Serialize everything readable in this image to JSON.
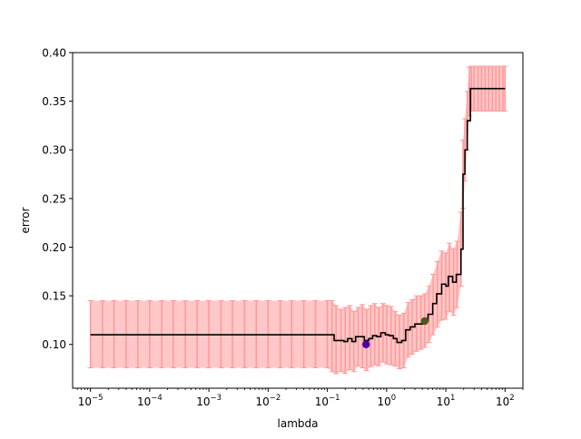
{
  "chart_data": {
    "type": "line",
    "title": "",
    "xlabel": "lambda",
    "ylabel": "error",
    "xscale": "log",
    "xlim": [
      5e-06,
      200
    ],
    "ylim": [
      0.055,
      0.4
    ],
    "grid": false,
    "x_ticks": [
      {
        "value": 1e-05,
        "label": "10−5",
        "base": "10",
        "exp": "−5"
      },
      {
        "value": 0.0001,
        "label": "10−4",
        "base": "10",
        "exp": "−4"
      },
      {
        "value": 0.001,
        "label": "10−3",
        "base": "10",
        "exp": "−3"
      },
      {
        "value": 0.01,
        "label": "10−2",
        "base": "10",
        "exp": "−2"
      },
      {
        "value": 0.1,
        "label": "10−1",
        "base": "10",
        "exp": "−1"
      },
      {
        "value": 1,
        "label": "100",
        "base": "10",
        "exp": "0"
      },
      {
        "value": 10,
        "label": "101",
        "base": "10",
        "exp": "1"
      },
      {
        "value": 100,
        "label": "102",
        "base": "10",
        "exp": "2"
      }
    ],
    "y_ticks": [
      {
        "value": 0.1,
        "label": "0.10"
      },
      {
        "value": 0.15,
        "label": "0.15"
      },
      {
        "value": 0.2,
        "label": "0.20"
      },
      {
        "value": 0.25,
        "label": "0.25"
      },
      {
        "value": 0.3,
        "label": "0.30"
      },
      {
        "value": 0.35,
        "label": "0.35"
      },
      {
        "value": 0.4,
        "label": "0.40"
      }
    ],
    "series": [
      {
        "kind": "line_with_errorbars",
        "line_color": "#000000",
        "errorbar_color": "#ff9999",
        "points": [
          [
            1e-05,
            0.11
          ],
          [
            0.12,
            0.11
          ],
          [
            0.13,
            0.104
          ],
          [
            0.16,
            0.104
          ],
          [
            0.19,
            0.103
          ],
          [
            0.22,
            0.106
          ],
          [
            0.26,
            0.103
          ],
          [
            0.3,
            0.108
          ],
          [
            0.36,
            0.108
          ],
          [
            0.42,
            0.104
          ],
          [
            0.5,
            0.106
          ],
          [
            0.58,
            0.109
          ],
          [
            0.68,
            0.108
          ],
          [
            0.8,
            0.112
          ],
          [
            0.95,
            0.11
          ],
          [
            1.1,
            0.109
          ],
          [
            1.3,
            0.106
          ],
          [
            1.5,
            0.102
          ],
          [
            1.8,
            0.104
          ],
          [
            2.1,
            0.115
          ],
          [
            2.5,
            0.118
          ],
          [
            3.0,
            0.121
          ],
          [
            3.5,
            0.121
          ],
          [
            4.2,
            0.124
          ],
          [
            5.0,
            0.131
          ],
          [
            6.0,
            0.142
          ],
          [
            7.0,
            0.152
          ],
          [
            8.5,
            0.162
          ],
          [
            10.0,
            0.16
          ],
          [
            11.0,
            0.17
          ],
          [
            13.0,
            0.164
          ],
          [
            15.0,
            0.172
          ],
          [
            18.0,
            0.198
          ],
          [
            19.5,
            0.275
          ],
          [
            21.0,
            0.3
          ],
          [
            23.0,
            0.33
          ],
          [
            26.0,
            0.363
          ],
          [
            100.0,
            0.363
          ]
        ],
        "errors": [
          [
            1e-05,
            0.076,
            0.145
          ],
          [
            1.6e-05,
            0.076,
            0.145
          ],
          [
            2.5e-05,
            0.076,
            0.145
          ],
          [
            4e-05,
            0.076,
            0.145
          ],
          [
            6.3e-05,
            0.076,
            0.145
          ],
          [
            0.0001,
            0.076,
            0.145
          ],
          [
            0.00016,
            0.076,
            0.145
          ],
          [
            0.00025,
            0.076,
            0.145
          ],
          [
            0.0004,
            0.076,
            0.145
          ],
          [
            0.00063,
            0.076,
            0.145
          ],
          [
            0.001,
            0.076,
            0.145
          ],
          [
            0.0016,
            0.076,
            0.145
          ],
          [
            0.0025,
            0.076,
            0.145
          ],
          [
            0.004,
            0.076,
            0.145
          ],
          [
            0.0063,
            0.076,
            0.145
          ],
          [
            0.01,
            0.076,
            0.145
          ],
          [
            0.016,
            0.076,
            0.145
          ],
          [
            0.025,
            0.076,
            0.145
          ],
          [
            0.04,
            0.076,
            0.145
          ],
          [
            0.063,
            0.076,
            0.145
          ],
          [
            0.1,
            0.076,
            0.145
          ],
          [
            0.12,
            0.072,
            0.145
          ],
          [
            0.14,
            0.07,
            0.14
          ],
          [
            0.17,
            0.072,
            0.136
          ],
          [
            0.2,
            0.07,
            0.138
          ],
          [
            0.24,
            0.074,
            0.14
          ],
          [
            0.28,
            0.072,
            0.134
          ],
          [
            0.33,
            0.078,
            0.138
          ],
          [
            0.39,
            0.076,
            0.141
          ],
          [
            0.46,
            0.073,
            0.136
          ],
          [
            0.54,
            0.077,
            0.14
          ],
          [
            0.63,
            0.079,
            0.142
          ],
          [
            0.74,
            0.078,
            0.138
          ],
          [
            0.87,
            0.082,
            0.142
          ],
          [
            1.0,
            0.08,
            0.14
          ],
          [
            1.2,
            0.079,
            0.139
          ],
          [
            1.4,
            0.078,
            0.134
          ],
          [
            1.65,
            0.075,
            0.13
          ],
          [
            1.95,
            0.076,
            0.132
          ],
          [
            2.3,
            0.087,
            0.143
          ],
          [
            2.7,
            0.09,
            0.146
          ],
          [
            3.2,
            0.093,
            0.15
          ],
          [
            3.8,
            0.095,
            0.15
          ],
          [
            4.4,
            0.097,
            0.152
          ],
          [
            5.2,
            0.102,
            0.16
          ],
          [
            6.1,
            0.11,
            0.172
          ],
          [
            7.2,
            0.118,
            0.185
          ],
          [
            8.5,
            0.125,
            0.196
          ],
          [
            10.0,
            0.126,
            0.194
          ],
          [
            11.5,
            0.134,
            0.204
          ],
          [
            13.5,
            0.13,
            0.198
          ],
          [
            15.5,
            0.138,
            0.206
          ],
          [
            18.0,
            0.16,
            0.236
          ],
          [
            19.5,
            0.24,
            0.31
          ],
          [
            21.0,
            0.268,
            0.332
          ],
          [
            23.0,
            0.3,
            0.36
          ],
          [
            25.0,
            0.335,
            0.385
          ],
          [
            27.0,
            0.34,
            0.386
          ],
          [
            30.0,
            0.34,
            0.386
          ],
          [
            35.0,
            0.34,
            0.386
          ],
          [
            40.0,
            0.34,
            0.386
          ],
          [
            46.0,
            0.34,
            0.386
          ],
          [
            53.0,
            0.34,
            0.386
          ],
          [
            61.0,
            0.34,
            0.386
          ],
          [
            70.0,
            0.34,
            0.386
          ],
          [
            80.0,
            0.34,
            0.386
          ],
          [
            92.0,
            0.34,
            0.386
          ],
          [
            100.0,
            0.34,
            0.386
          ]
        ]
      }
    ],
    "markers": [
      {
        "x": 0.45,
        "y": 0.1,
        "color": "#4b00a8"
      },
      {
        "x": 4.4,
        "y": 0.124,
        "color": "#4a5a1a"
      }
    ],
    "legend": "none"
  }
}
